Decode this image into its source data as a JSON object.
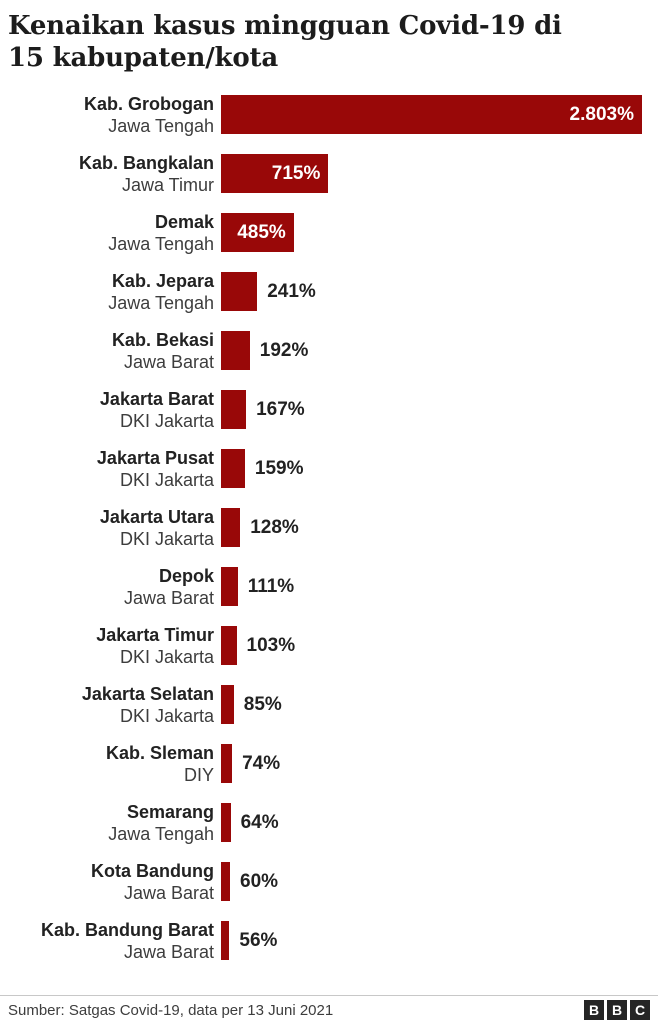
{
  "header": {
    "title": "Kenaikan kasus mingguan Covid-19 di\n15 kabupaten/kota"
  },
  "chart_data": {
    "type": "bar",
    "orientation": "horizontal",
    "title": "Kenaikan kasus mingguan Covid-19 di 15 kabupaten/kota",
    "value_unit": "%",
    "xlim": [
      0,
      2803
    ],
    "grid": false,
    "bar_color": "#990808",
    "rows": [
      {
        "name": "Kab. Grobogan",
        "region": "Jawa Tengah",
        "value": 2803,
        "label": "2.803%",
        "label_position": "inside"
      },
      {
        "name": "Kab. Bangkalan",
        "region": "Jawa Timur",
        "value": 715,
        "label": "715%",
        "label_position": "inside"
      },
      {
        "name": "Demak",
        "region": "Jawa Tengah",
        "value": 485,
        "label": "485%",
        "label_position": "inside"
      },
      {
        "name": "Kab. Jepara",
        "region": "Jawa Tengah",
        "value": 241,
        "label": "241%",
        "label_position": "outside"
      },
      {
        "name": "Kab. Bekasi",
        "region": "Jawa Barat",
        "value": 192,
        "label": "192%",
        "label_position": "outside"
      },
      {
        "name": "Jakarta Barat",
        "region": "DKI Jakarta",
        "value": 167,
        "label": "167%",
        "label_position": "outside"
      },
      {
        "name": "Jakarta Pusat",
        "region": "DKI Jakarta",
        "value": 159,
        "label": "159%",
        "label_position": "outside"
      },
      {
        "name": "Jakarta Utara",
        "region": "DKI Jakarta",
        "value": 128,
        "label": "128%",
        "label_position": "outside"
      },
      {
        "name": "Depok",
        "region": "Jawa Barat",
        "value": 111,
        "label": "111%",
        "label_position": "outside"
      },
      {
        "name": "Jakarta Timur",
        "region": "DKI Jakarta",
        "value": 103,
        "label": "103%",
        "label_position": "outside"
      },
      {
        "name": "Jakarta Selatan",
        "region": "DKI Jakarta",
        "value": 85,
        "label": "85%",
        "label_position": "outside"
      },
      {
        "name": "Kab. Sleman",
        "region": "DIY",
        "value": 74,
        "label": "74%",
        "label_position": "outside"
      },
      {
        "name": "Semarang",
        "region": "Jawa Tengah",
        "value": 64,
        "label": "64%",
        "label_position": "outside"
      },
      {
        "name": "Kota Bandung",
        "region": "Jawa Barat",
        "value": 60,
        "label": "60%",
        "label_position": "outside"
      },
      {
        "name": "Kab. Bandung Barat",
        "region": "Jawa Barat",
        "value": 56,
        "label": "56%",
        "label_position": "outside"
      }
    ]
  },
  "footer": {
    "source": "Sumber: Satgas Covid-19, data per 13 Juni 2021",
    "logo_letters": [
      "B",
      "B",
      "C"
    ]
  },
  "colors": {
    "bar": "#990808",
    "title_text": "#1c1c1c",
    "name_text": "#222222",
    "region_text": "#3d3d3d",
    "value_inside_text": "#ffffff",
    "value_outside_text": "#222222",
    "divider": "#c8c8c8",
    "logo_block": "#252525"
  }
}
